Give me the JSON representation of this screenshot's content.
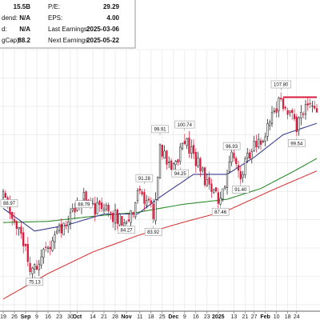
{
  "info_panel": {
    "rows_left": [
      {
        "label": "",
        "value": "15.5B"
      },
      {
        "label": "dend:",
        "value": "N/A"
      },
      {
        "label": "d:",
        "value": "N/A"
      },
      {
        "label": "gCap):",
        "value": "88.2"
      }
    ],
    "rows_right": [
      {
        "label": "P/E:",
        "value": "29.29"
      },
      {
        "label": "EPS:",
        "value": "4.00"
      },
      {
        "label": "Last Earnings:",
        "value": "2025-03-06"
      },
      {
        "label": "Next Earnings:",
        "value": "2025-05-22"
      }
    ]
  },
  "chart_data": {
    "type": "candlestick",
    "title": "",
    "xlabel": "",
    "ylabel": "",
    "ylim": [
      69,
      115
    ],
    "grid": true,
    "colors": {
      "up": "#111111",
      "down": "#d81b3c",
      "sma_short": "#3a3f8f",
      "sma_mid": "#2e8b2e",
      "sma_long": "#d83c3c",
      "resistance": "#d81b3c",
      "grid": "#e3e3e3"
    },
    "x_ticks": [
      {
        "label": "19",
        "bold": false,
        "i": 0
      },
      {
        "label": "26",
        "bold": false,
        "i": 5
      },
      {
        "label": "Sep",
        "bold": true,
        "i": 10
      },
      {
        "label": "9",
        "bold": false,
        "i": 15
      },
      {
        "label": "16",
        "bold": false,
        "i": 20
      },
      {
        "label": "23",
        "bold": false,
        "i": 25
      },
      {
        "label": "30",
        "bold": false,
        "i": 30
      },
      {
        "label": "Oct",
        "bold": true,
        "i": 33
      },
      {
        "label": "14",
        "bold": false,
        "i": 40
      },
      {
        "label": "21",
        "bold": false,
        "i": 45
      },
      {
        "label": "28",
        "bold": false,
        "i": 50
      },
      {
        "label": "Nov",
        "bold": true,
        "i": 55
      },
      {
        "label": "11",
        "bold": false,
        "i": 61
      },
      {
        "label": "18",
        "bold": false,
        "i": 66
      },
      {
        "label": "25",
        "bold": false,
        "i": 71
      },
      {
        "label": "Dec",
        "bold": true,
        "i": 76
      },
      {
        "label": "9",
        "bold": false,
        "i": 81
      },
      {
        "label": "16",
        "bold": false,
        "i": 86
      },
      {
        "label": "23",
        "bold": false,
        "i": 91
      },
      {
        "label": "2025",
        "bold": true,
        "i": 96
      },
      {
        "label": "13",
        "bold": false,
        "i": 103
      },
      {
        "label": "21",
        "bold": false,
        "i": 108
      },
      {
        "label": "27",
        "bold": false,
        "i": 112
      },
      {
        "label": "Feb",
        "bold": true,
        "i": 117
      },
      {
        "label": "10",
        "bold": false,
        "i": 122
      },
      {
        "label": "18",
        "bold": false,
        "i": 127
      },
      {
        "label": "24",
        "bold": false,
        "i": 131
      }
    ],
    "annotations": [
      {
        "i": 0,
        "price": 88.97,
        "label": "88.97"
      },
      {
        "i": 14,
        "price": 75.13,
        "label": "75.13"
      },
      {
        "i": 36,
        "price": 88.79,
        "label": "88.79"
      },
      {
        "i": 55,
        "price": 84.27,
        "label": "84.27"
      },
      {
        "i": 63,
        "price": 91.28,
        "label": "91.28"
      },
      {
        "i": 67,
        "price": 83.92,
        "label": "83.92"
      },
      {
        "i": 70,
        "price": 99.91,
        "label": "99.91"
      },
      {
        "i": 79,
        "price": 94.25,
        "label": "94.25"
      },
      {
        "i": 81,
        "price": 100.74,
        "label": "100.74"
      },
      {
        "i": 97,
        "price": 87.46,
        "label": "87.46"
      },
      {
        "i": 102,
        "price": 96.93,
        "label": "96.93"
      },
      {
        "i": 106,
        "price": 91.4,
        "label": "91.40"
      },
      {
        "i": 124,
        "price": 107.8,
        "label": "107.80"
      },
      {
        "i": 131,
        "price": 99.54,
        "label": "99.54"
      }
    ],
    "resistance": {
      "price": 106.6,
      "from_i": 125,
      "to_i": 140
    },
    "anchors": [
      [
        0,
        89
      ],
      [
        4,
        86
      ],
      [
        8,
        82
      ],
      [
        12,
        77
      ],
      [
        14,
        76
      ],
      [
        17,
        79
      ],
      [
        21,
        81
      ],
      [
        25,
        83
      ],
      [
        29,
        85
      ],
      [
        33,
        88
      ],
      [
        36,
        89
      ],
      [
        40,
        87
      ],
      [
        44,
        87
      ],
      [
        48,
        86
      ],
      [
        52,
        85
      ],
      [
        55,
        85
      ],
      [
        58,
        87
      ],
      [
        61,
        90
      ],
      [
        63,
        89
      ],
      [
        66,
        87
      ],
      [
        67,
        85
      ],
      [
        69,
        92
      ],
      [
        70,
        98
      ],
      [
        73,
        95
      ],
      [
        76,
        94
      ],
      [
        78,
        96
      ],
      [
        81,
        99
      ],
      [
        84,
        97
      ],
      [
        87,
        95
      ],
      [
        90,
        92
      ],
      [
        94,
        90
      ],
      [
        97,
        88.5
      ],
      [
        100,
        92
      ],
      [
        102,
        96
      ],
      [
        104,
        94
      ],
      [
        106,
        93
      ],
      [
        108,
        95
      ],
      [
        111,
        98
      ],
      [
        114,
        99
      ],
      [
        117,
        100
      ],
      [
        120,
        103
      ],
      [
        122,
        105
      ],
      [
        124,
        106.5
      ],
      [
        127,
        104
      ],
      [
        129,
        103
      ],
      [
        131,
        101.5
      ],
      [
        134,
        104
      ],
      [
        137,
        106
      ],
      [
        140,
        104
      ]
    ],
    "sma_short_anchors": [
      [
        0,
        87
      ],
      [
        14,
        83
      ],
      [
        28,
        84
      ],
      [
        45,
        86
      ],
      [
        60,
        86
      ],
      [
        70,
        89
      ],
      [
        85,
        93
      ],
      [
        100,
        93
      ],
      [
        112,
        96
      ],
      [
        125,
        100
      ],
      [
        140,
        102
      ]
    ],
    "sma_mid_anchors": [
      [
        0,
        84.5
      ],
      [
        20,
        84.7
      ],
      [
        40,
        85.6
      ],
      [
        60,
        86.3
      ],
      [
        80,
        87.7
      ],
      [
        100,
        88.6
      ],
      [
        115,
        90.5
      ],
      [
        130,
        93.6
      ],
      [
        140,
        95.8
      ]
    ],
    "sma_long_anchors": [
      [
        0,
        71
      ],
      [
        20,
        75.5
      ],
      [
        40,
        79.3
      ],
      [
        60,
        82.2
      ],
      [
        80,
        84.5
      ],
      [
        100,
        86.6
      ],
      [
        120,
        90.2
      ],
      [
        140,
        93.6
      ]
    ]
  }
}
